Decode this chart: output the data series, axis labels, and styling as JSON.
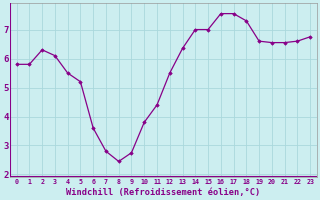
{
  "x": [
    0,
    1,
    2,
    3,
    4,
    5,
    6,
    7,
    8,
    9,
    10,
    11,
    12,
    13,
    14,
    15,
    16,
    17,
    18,
    19,
    20,
    21,
    22,
    23
  ],
  "y": [
    5.8,
    5.8,
    6.3,
    6.1,
    5.5,
    5.2,
    3.6,
    2.8,
    2.45,
    2.75,
    3.8,
    4.4,
    5.5,
    6.35,
    7.0,
    7.0,
    7.55,
    7.55,
    7.3,
    6.6,
    6.55,
    6.55,
    6.6,
    6.75
  ],
  "line_color": "#880088",
  "marker": "D",
  "marker_size": 1.8,
  "line_width": 0.9,
  "bg_color": "#cceef0",
  "grid_color": "#aad8dc",
  "xlabel": "Windchill (Refroidissement éolien,°C)",
  "xlim": [
    -0.5,
    23.5
  ],
  "ylim": [
    1.9,
    7.9
  ],
  "yticks": [
    2,
    3,
    4,
    5,
    6,
    7
  ],
  "xtick_labels": [
    "0",
    "1",
    "2",
    "3",
    "4",
    "5",
    "6",
    "7",
    "8",
    "9",
    "10",
    "11",
    "12",
    "13",
    "14",
    "15",
    "16",
    "17",
    "18",
    "19",
    "20",
    "21",
    "22",
    "23"
  ]
}
